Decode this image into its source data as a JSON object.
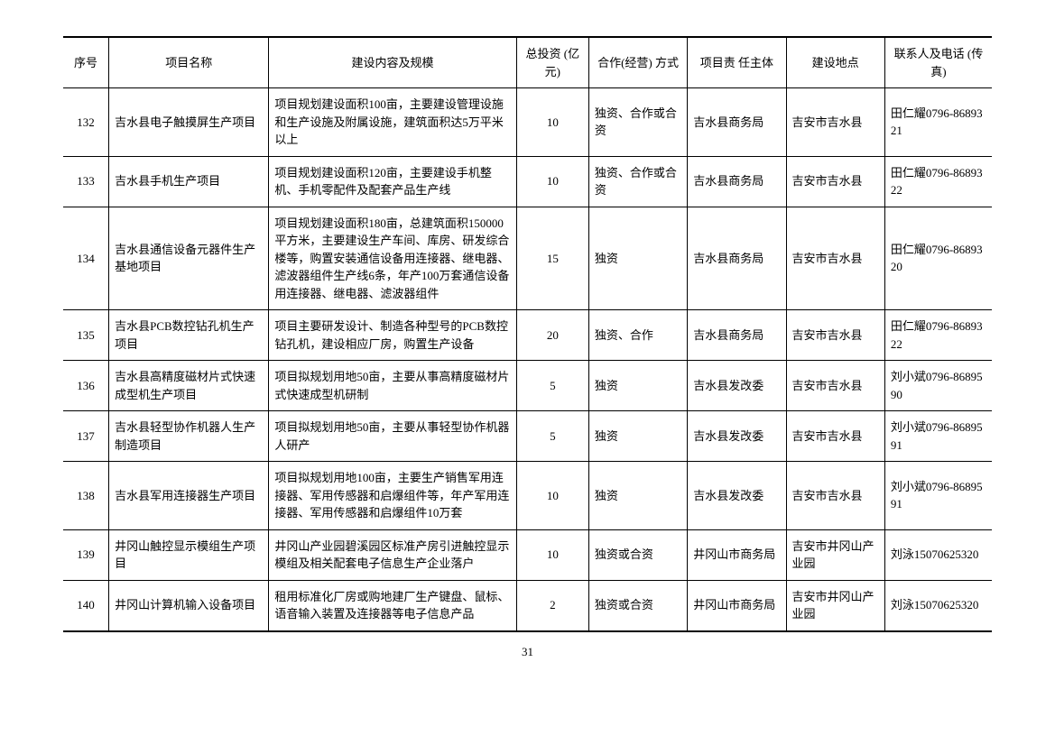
{
  "page_number": "31",
  "table": {
    "headers": [
      "序号",
      "项目名称",
      "建设内容及规模",
      "总投资\n(亿元)",
      "合作(经营)\n方式",
      "项目责\n任主体",
      "建设地点",
      "联系人及电话\n(传真)"
    ],
    "col_widths_pct": [
      4,
      17,
      27,
      7,
      10,
      10,
      10,
      11
    ],
    "border_color": "#000000",
    "font_size": 13,
    "rows": [
      {
        "seq": "132",
        "name": "吉水县电子触摸屏生产项目",
        "content": "项目规划建设面积100亩，主要建设管理设施和生产设施及附属设施，建筑面积达5万平米以上",
        "invest": "10",
        "coop": "独资、合作或合资",
        "body": "吉水县商务局",
        "loc": "吉安市吉水县",
        "contact": "田仁耀0796-8689321"
      },
      {
        "seq": "133",
        "name": "吉水县手机生产项目",
        "content": "项目规划建设面积120亩，主要建设手机整机、手机零配件及配套产品生产线",
        "invest": "10",
        "coop": "独资、合作或合资",
        "body": "吉水县商务局",
        "loc": "吉安市吉水县",
        "contact": "田仁耀0796-8689322"
      },
      {
        "seq": "134",
        "name": "吉水县通信设备元器件生产基地项目",
        "content": "项目规划建设面积180亩，总建筑面积150000平方米，主要建设生产车间、库房、研发综合楼等，购置安装通信设备用连接器、继电器、滤波器组件生产线6条，年产100万套通信设备用连接器、继电器、滤波器组件",
        "invest": "15",
        "coop": "独资",
        "body": "吉水县商务局",
        "loc": "吉安市吉水县",
        "contact": "田仁耀0796-8689320"
      },
      {
        "seq": "135",
        "name": "吉水县PCB数控钻孔机生产项目",
        "content": "项目主要研发设计、制造各种型号的PCB数控钻孔机，建设相应厂房，购置生产设备",
        "invest": "20",
        "coop": "独资、合作",
        "body": "吉水县商务局",
        "loc": "吉安市吉水县",
        "contact": "田仁耀0796-8689322"
      },
      {
        "seq": "136",
        "name": "吉水县高精度磁材片式快速成型机生产项目",
        "content": "项目拟规划用地50亩，主要从事高精度磁材片式快速成型机研制",
        "invest": "5",
        "coop": "独资",
        "body": "吉水县发改委",
        "loc": "吉安市吉水县",
        "contact": "刘小斌0796-8689590"
      },
      {
        "seq": "137",
        "name": "吉水县轻型协作机器人生产制造项目",
        "content": "项目拟规划用地50亩，主要从事轻型协作机器人研产",
        "invest": "5",
        "coop": "独资",
        "body": "吉水县发改委",
        "loc": "吉安市吉水县",
        "contact": "刘小斌0796-8689591"
      },
      {
        "seq": "138",
        "name": "吉水县军用连接器生产项目",
        "content": "项目拟规划用地100亩，主要生产销售军用连接器、军用传感器和启爆组件等，年产军用连接器、军用传感器和启爆组件10万套",
        "invest": "10",
        "coop": "独资",
        "body": "吉水县发改委",
        "loc": "吉安市吉水县",
        "contact": "刘小斌0796-8689591"
      },
      {
        "seq": "139",
        "name": "井冈山触控显示模组生产项目",
        "content": "井冈山产业园碧溪园区标准产房引进触控显示模组及相关配套电子信息生产企业落户",
        "invest": "10",
        "coop": "独资或合资",
        "body": "井冈山市商务局",
        "loc": "吉安市井冈山产业园",
        "contact": "刘泳15070625320"
      },
      {
        "seq": "140",
        "name": "井冈山计算机输入设备项目",
        "content": "租用标准化厂房或购地建厂生产键盘、鼠标、语音输入装置及连接器等电子信息产品",
        "invest": "2",
        "coop": "独资或合资",
        "body": "井冈山市商务局",
        "loc": "吉安市井冈山产业园",
        "contact": "刘泳15070625320"
      }
    ]
  }
}
